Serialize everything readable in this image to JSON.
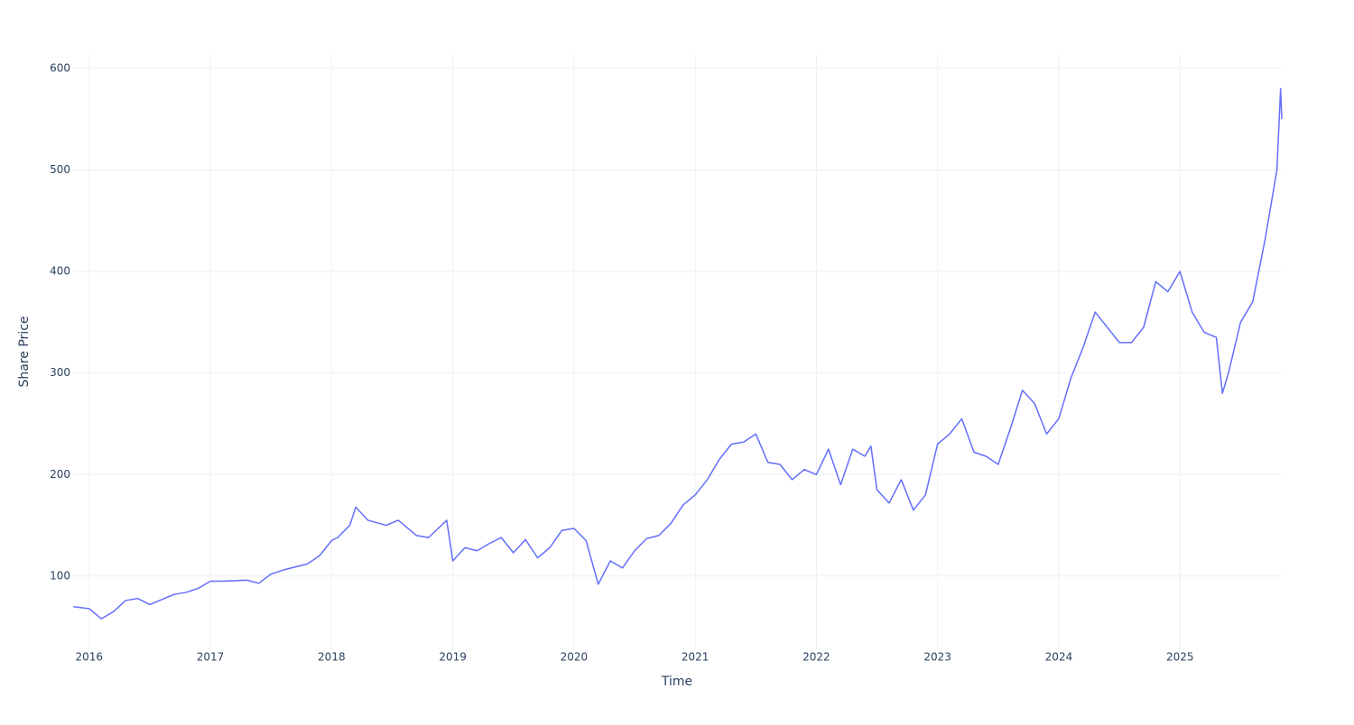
{
  "chart_data": {
    "type": "line",
    "x_label": "Time",
    "y_label": "Share Price",
    "x": [
      2015.87,
      2016.0,
      2016.1,
      2016.2,
      2016.3,
      2016.4,
      2016.5,
      2016.6,
      2016.7,
      2016.8,
      2016.9,
      2017.0,
      2017.1,
      2017.3,
      2017.4,
      2017.5,
      2017.6,
      2017.8,
      2017.9,
      2018.0,
      2018.05,
      2018.15,
      2018.2,
      2018.3,
      2018.45,
      2018.55,
      2018.7,
      2018.8,
      2018.95,
      2019.0,
      2019.1,
      2019.2,
      2019.3,
      2019.4,
      2019.5,
      2019.6,
      2019.7,
      2019.8,
      2019.9,
      2020.0,
      2020.1,
      2020.2,
      2020.3,
      2020.4,
      2020.5,
      2020.6,
      2020.7,
      2020.8,
      2020.9,
      2021.0,
      2021.1,
      2021.2,
      2021.3,
      2021.4,
      2021.5,
      2021.6,
      2021.7,
      2021.8,
      2021.9,
      2022.0,
      2022.1,
      2022.2,
      2022.3,
      2022.4,
      2022.45,
      2022.5,
      2022.6,
      2022.7,
      2022.8,
      2022.9,
      2023.0,
      2023.1,
      2023.2,
      2023.3,
      2023.4,
      2023.5,
      2023.6,
      2023.7,
      2023.8,
      2023.9,
      2024.0,
      2024.1,
      2024.2,
      2024.3,
      2024.4,
      2024.5,
      2024.6,
      2024.7,
      2024.8,
      2024.9,
      2025.0,
      2025.1,
      2025.2,
      2025.3,
      2025.35,
      2025.4,
      2025.5,
      2025.6,
      2025.7,
      2025.8,
      2025.83,
      2025.84
    ],
    "values": [
      70,
      68,
      58,
      65,
      76,
      78,
      72,
      77,
      82,
      84,
      88,
      95,
      95,
      96,
      93,
      102,
      106,
      112,
      120,
      135,
      138,
      150,
      168,
      155,
      150,
      155,
      140,
      138,
      155,
      115,
      128,
      125,
      132,
      138,
      123,
      136,
      118,
      128,
      145,
      147,
      135,
      92,
      115,
      108,
      125,
      137,
      140,
      152,
      170,
      180,
      195,
      215,
      230,
      232,
      240,
      212,
      210,
      195,
      205,
      200,
      225,
      190,
      225,
      218,
      228,
      185,
      172,
      195,
      165,
      180,
      230,
      240,
      255,
      222,
      218,
      210,
      245,
      283,
      270,
      240,
      255,
      295,
      325,
      360,
      345,
      330,
      330,
      345,
      390,
      380,
      400,
      360,
      340,
      335,
      280,
      300,
      350,
      370,
      430,
      500,
      580,
      550
    ],
    "color": "#636efa",
    "xlim": [
      2015.86,
      2025.84
    ],
    "xticks": [
      2016,
      2017,
      2018,
      2019,
      2020,
      2021,
      2022,
      2023,
      2024,
      2025
    ],
    "ylim": [
      28,
      614
    ],
    "yticks": [
      100,
      200,
      300,
      400,
      500,
      600
    ],
    "grid": true
  }
}
